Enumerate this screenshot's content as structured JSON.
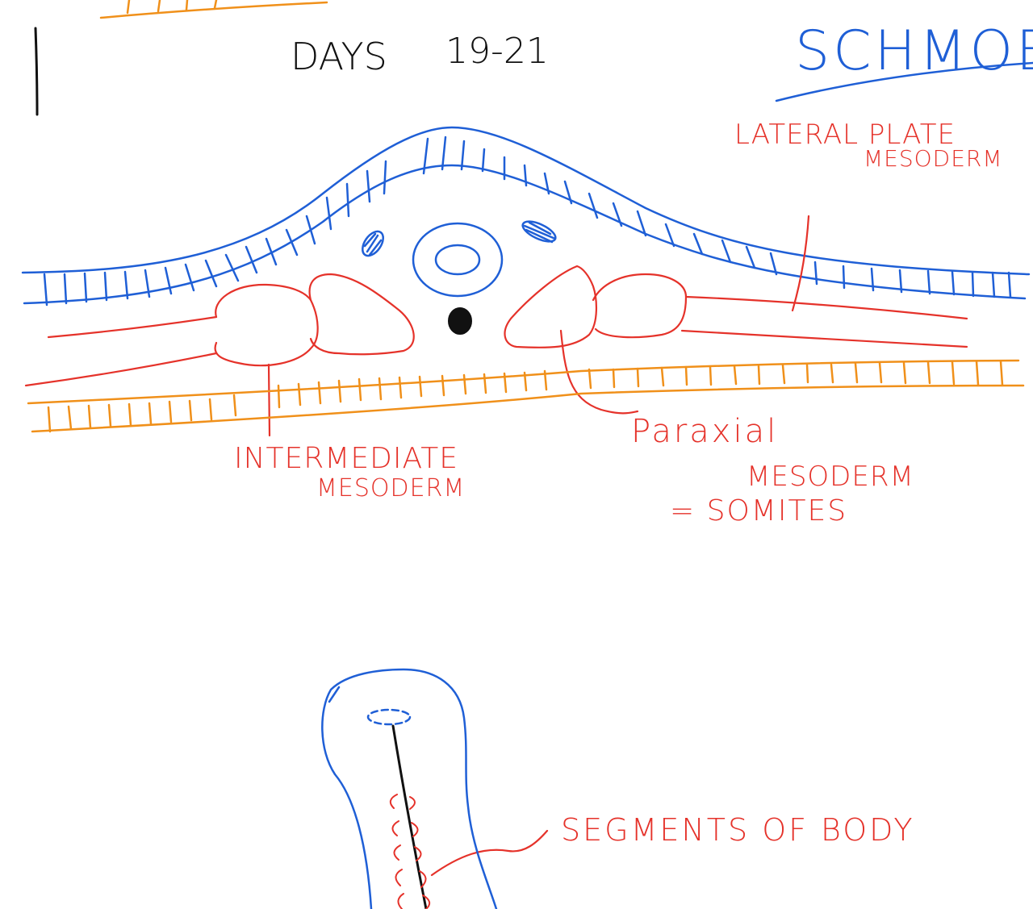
{
  "header": {
    "days_label": "DAYS",
    "days_range": "19-21",
    "top_right_word": "SCHMOE"
  },
  "labels": {
    "lateral_line1": "LATERAL PLATE",
    "lateral_line2": "MESODERM",
    "intermediate_line1": "INTERMEDIATE",
    "intermediate_line2": "MESODERM",
    "paraxial_line1": "Paraxial",
    "paraxial_line2": "MESODERM",
    "paraxial_line3": "= SOMITES",
    "segments": "SEGMENTS OF BODY"
  },
  "colors": {
    "ectoderm": "#1f5fd6",
    "mesoderm": "#e5322a",
    "endoderm": "#f0901a",
    "notochord": "#111111",
    "ink": "#111111"
  }
}
